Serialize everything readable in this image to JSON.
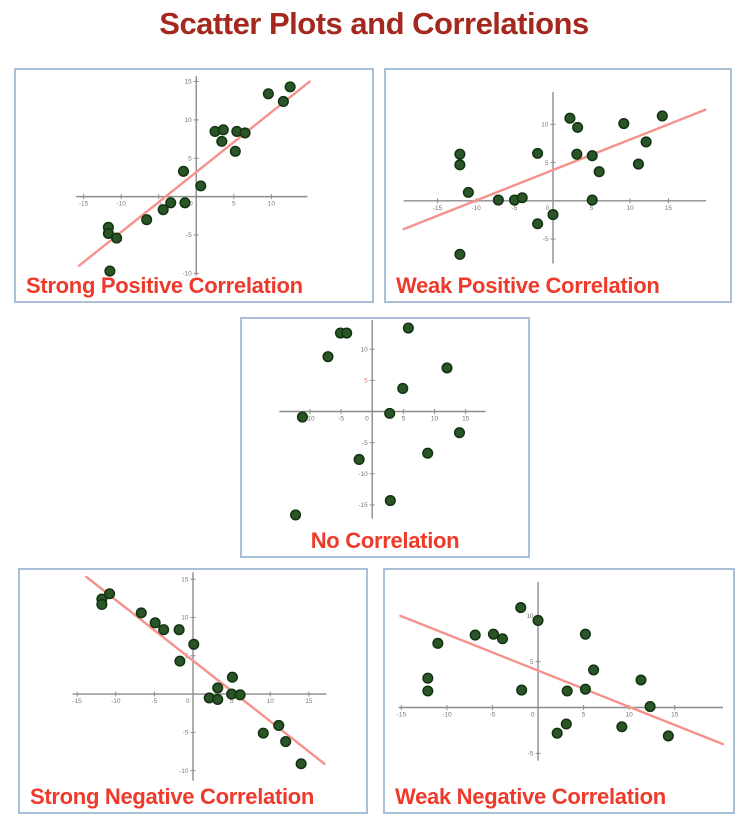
{
  "page": {
    "title": "Scatter Plots and Correlations"
  },
  "style": {
    "title_color": "#a5281f",
    "caption_color": "#ee3a2a",
    "border_color": "#a9c0d8",
    "axis_color": "#8c8c8c",
    "tick_label_color": "#787878",
    "red_tick_color": "#dd7a6f",
    "dot_fill": "#2a5527",
    "dot_stroke": "#123312",
    "trend_color": "#f4928b",
    "background": "#ffffff"
  },
  "chart_data": [
    {
      "type": "scatter",
      "name": "strong-positive-correlation",
      "caption": "Strong Positive Correlation",
      "xlim": [
        -24,
        23.4
      ],
      "ylim": [
        -13.6,
        16.5
      ],
      "x_axis_span": [
        -16,
        14.8
      ],
      "y_axis_span": [
        -10.3,
        15.7
      ],
      "xticks": [
        -15,
        -10,
        -5,
        0,
        5,
        10
      ],
      "yticks": [
        -10,
        -5,
        5,
        10,
        15
      ],
      "red_yticks": [],
      "trendline": [
        [
          -15.6,
          -9.0
        ],
        [
          15.1,
          15.0
        ]
      ],
      "points": [
        [
          -11.7,
          -4.0
        ],
        [
          -11.7,
          -4.8
        ],
        [
          -10.6,
          -5.4
        ],
        [
          -11.5,
          -9.7
        ],
        [
          -6.6,
          -3.0
        ],
        [
          -4.4,
          -1.7
        ],
        [
          -3.4,
          -0.8
        ],
        [
          -1.5,
          -0.8
        ],
        [
          -1.7,
          3.3
        ],
        [
          0.6,
          1.4
        ],
        [
          2.5,
          8.5
        ],
        [
          3.6,
          8.7
        ],
        [
          3.4,
          7.2
        ],
        [
          5.4,
          8.5
        ],
        [
          6.5,
          8.3
        ],
        [
          5.2,
          5.9
        ],
        [
          9.6,
          13.4
        ],
        [
          11.6,
          12.4
        ],
        [
          12.5,
          14.3
        ]
      ]
    },
    {
      "type": "scatter",
      "name": "weak-positive-correlation",
      "caption": "Weak Positive Correlation",
      "xlim": [
        -21.7,
        23.0
      ],
      "ylim": [
        -13.1,
        17.1
      ],
      "x_axis_span": [
        -19.4,
        19.9
      ],
      "y_axis_span": [
        -8.2,
        14.2
      ],
      "xticks": [
        -15,
        -10,
        -5,
        0,
        5,
        10,
        15
      ],
      "yticks": [
        -5,
        5,
        10
      ],
      "red_yticks": [],
      "trendline": [
        [
          -19.4,
          -3.7
        ],
        [
          19.8,
          11.9
        ]
      ],
      "points": [
        [
          2.2,
          10.8
        ],
        [
          3.2,
          9.6
        ],
        [
          9.2,
          10.1
        ],
        [
          14.2,
          11.1
        ],
        [
          12.1,
          7.7
        ],
        [
          -12.1,
          6.1
        ],
        [
          -12.1,
          4.7
        ],
        [
          -2.0,
          6.2
        ],
        [
          3.1,
          6.1
        ],
        [
          5.1,
          5.9
        ],
        [
          6.0,
          3.8
        ],
        [
          11.1,
          4.8
        ],
        [
          -11.0,
          1.1
        ],
        [
          -7.1,
          0.1
        ],
        [
          -5.0,
          0.1
        ],
        [
          -4.0,
          0.4
        ],
        [
          0.0,
          -1.8
        ],
        [
          -2.0,
          -3.0
        ],
        [
          5.1,
          0.1
        ],
        [
          -12.1,
          -7.0
        ]
      ]
    },
    {
      "type": "scatter",
      "name": "no-correlation",
      "caption": "No Correlation",
      "xlim": [
        -20.9,
        25.0
      ],
      "ylim": [
        -23.2,
        14.85
      ],
      "x_axis_span": [
        -14.9,
        18.2
      ],
      "y_axis_span": [
        -17.2,
        14.7
      ],
      "xticks": [
        -10,
        -5,
        0,
        5,
        10,
        15
      ],
      "yticks": [
        -15,
        -10,
        -5,
        5,
        10
      ],
      "red_yticks": [
        5
      ],
      "trendline": null,
      "points": [
        [
          -5.1,
          12.6
        ],
        [
          -4.1,
          12.6
        ],
        [
          5.8,
          13.4
        ],
        [
          -7.1,
          8.8
        ],
        [
          12.0,
          7.0
        ],
        [
          4.9,
          3.7
        ],
        [
          2.8,
          -0.3
        ],
        [
          -11.2,
          -0.9
        ],
        [
          14.0,
          -3.4
        ],
        [
          8.9,
          -6.7
        ],
        [
          -2.1,
          -7.7
        ],
        [
          2.9,
          -14.3
        ],
        [
          -12.3,
          -16.6
        ]
      ]
    },
    {
      "type": "scatter",
      "name": "strong-negative-correlation",
      "caption": "Strong Negative Correlation",
      "xlim": [
        -22.4,
        22.4
      ],
      "ylim": [
        -15.4,
        16.2
      ],
      "x_axis_span": [
        -15.6,
        17.3
      ],
      "y_axis_span": [
        -11.3,
        15.9
      ],
      "xticks": [
        -15,
        -10,
        -5,
        0,
        5,
        10,
        15
      ],
      "yticks": [
        -10,
        -5,
        5,
        10,
        15
      ],
      "red_yticks": [],
      "trendline": [
        [
          -13.8,
          15.3
        ],
        [
          17.0,
          -9.1
        ]
      ],
      "points": [
        [
          -11.8,
          12.4
        ],
        [
          -11.8,
          11.7
        ],
        [
          -10.8,
          13.1
        ],
        [
          -6.7,
          10.6
        ],
        [
          -4.9,
          9.3
        ],
        [
          -3.8,
          8.4
        ],
        [
          -1.8,
          8.4
        ],
        [
          0.1,
          6.5
        ],
        [
          -1.7,
          4.3
        ],
        [
          5.1,
          2.2
        ],
        [
          3.2,
          0.8
        ],
        [
          2.1,
          -0.5
        ],
        [
          3.2,
          -0.7
        ],
        [
          5.0,
          0.0
        ],
        [
          6.1,
          -0.1
        ],
        [
          9.1,
          -5.1
        ],
        [
          11.1,
          -4.1
        ],
        [
          12.0,
          -6.2
        ],
        [
          14.0,
          -9.1
        ]
      ]
    },
    {
      "type": "scatter",
      "name": "weak-negative-correlation",
      "caption": "Weak Negative Correlation",
      "xlim": [
        -16.8,
        21.4
      ],
      "ylim": [
        -11.4,
        15.0
      ],
      "x_axis_span": [
        -15.3,
        20.3
      ],
      "y_axis_span": [
        -5.8,
        13.7
      ],
      "xticks": [
        -15,
        -10,
        -5,
        0,
        5,
        10,
        15
      ],
      "yticks": [
        -5,
        5,
        10
      ],
      "red_yticks": [],
      "trendline": [
        [
          -15.1,
          10.0
        ],
        [
          20.3,
          -4.0
        ]
      ],
      "points": [
        [
          -1.9,
          10.9
        ],
        [
          0.0,
          9.5
        ],
        [
          5.2,
          8.0
        ],
        [
          -6.9,
          7.9
        ],
        [
          -4.9,
          8.0
        ],
        [
          -3.9,
          7.5
        ],
        [
          -11.0,
          7.0
        ],
        [
          -12.1,
          3.2
        ],
        [
          -12.1,
          1.8
        ],
        [
          6.1,
          4.1
        ],
        [
          11.3,
          3.0
        ],
        [
          -1.8,
          1.9
        ],
        [
          3.2,
          1.8
        ],
        [
          5.2,
          2.0
        ],
        [
          12.3,
          0.1
        ],
        [
          3.1,
          -1.8
        ],
        [
          2.1,
          -2.8
        ],
        [
          9.2,
          -2.1
        ],
        [
          14.3,
          -3.1
        ]
      ]
    }
  ]
}
